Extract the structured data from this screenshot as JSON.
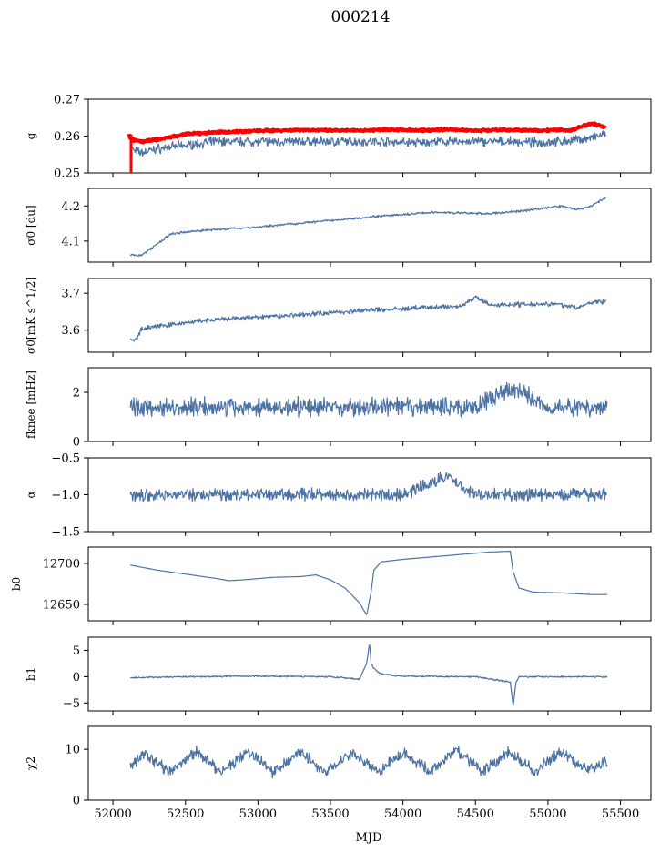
{
  "figure": {
    "title": "000214",
    "xlabel": "MJD"
  },
  "chart_data": [
    {
      "type": "line",
      "ylabel": "g",
      "x_range": [
        52120,
        55410
      ],
      "ylim": [
        0.25,
        0.27
      ],
      "yticks": [
        0.25,
        0.26,
        0.27
      ],
      "yticklabels": [
        "0.25",
        "0.26",
        "0.27"
      ],
      "series": [
        {
          "color": "#4C72A4",
          "x": [
            52120,
            52150,
            52200,
            52300,
            52500,
            52700,
            52900,
            53100,
            53300,
            53500,
            53700,
            53900,
            54100,
            54300,
            54500,
            54700,
            54900,
            55100,
            55300,
            55400
          ],
          "y": [
            0.2568,
            0.256,
            0.2555,
            0.2565,
            0.2575,
            0.2585,
            0.2585,
            0.2585,
            0.2585,
            0.2585,
            0.2585,
            0.2585,
            0.2582,
            0.2585,
            0.2585,
            0.2585,
            0.2582,
            0.2585,
            0.2595,
            0.2605
          ]
        },
        {
          "color": "#FF0000",
          "x": [
            52110,
            52120,
            52150,
            52200,
            52300,
            52500,
            52700,
            52900,
            53100,
            53300,
            53500,
            53700,
            53900,
            54100,
            54300,
            54500,
            54700,
            54900,
            55100,
            55150,
            55300,
            55400
          ],
          "y": [
            0.2605,
            0.2595,
            0.2588,
            0.2585,
            0.259,
            0.2605,
            0.261,
            0.2613,
            0.2615,
            0.2617,
            0.2615,
            0.2615,
            0.2618,
            0.2615,
            0.2618,
            0.2615,
            0.2617,
            0.2615,
            0.2617,
            0.2615,
            0.2635,
            0.2622
          ]
        }
      ]
    },
    {
      "type": "line",
      "ylabel": "σ0 [du]",
      "x_range": [
        52120,
        55410
      ],
      "ylim": [
        4.04,
        4.25
      ],
      "yticks": [
        4.1,
        4.2
      ],
      "yticklabels": [
        "4.1",
        "4.2"
      ],
      "series": [
        {
          "color": "#4C72A4",
          "x": [
            52120,
            52200,
            52300,
            52400,
            52600,
            52800,
            53000,
            53200,
            53400,
            53600,
            53800,
            54000,
            54200,
            54400,
            54600,
            54800,
            55000,
            55100,
            55200,
            55300,
            55400
          ],
          "y": [
            4.06,
            4.06,
            4.09,
            4.12,
            4.13,
            4.135,
            4.14,
            4.148,
            4.155,
            4.162,
            4.17,
            4.175,
            4.182,
            4.18,
            4.178,
            4.185,
            4.195,
            4.2,
            4.19,
            4.2,
            4.225
          ]
        }
      ]
    },
    {
      "type": "line",
      "ylabel": "σ0[mK s^1/2]",
      "x_range": [
        52120,
        55410
      ],
      "ylim": [
        3.54,
        3.74
      ],
      "yticks": [
        3.6,
        3.7
      ],
      "yticklabels": [
        "3.6",
        "3.7"
      ],
      "series": [
        {
          "color": "#4C72A4",
          "x": [
            52120,
            52150,
            52200,
            52400,
            52600,
            52800,
            53000,
            53200,
            53400,
            53600,
            53800,
            54000,
            54200,
            54400,
            54500,
            54600,
            54800,
            55000,
            55100,
            55200,
            55300,
            55400
          ],
          "y": [
            3.575,
            3.57,
            3.605,
            3.615,
            3.625,
            3.63,
            3.635,
            3.64,
            3.645,
            3.65,
            3.655,
            3.658,
            3.662,
            3.665,
            3.69,
            3.668,
            3.67,
            3.672,
            3.668,
            3.66,
            3.675,
            3.678
          ]
        }
      ]
    },
    {
      "type": "line",
      "ylabel": "fknee [mHz]",
      "x_range": [
        52120,
        55410
      ],
      "ylim": [
        0,
        3
      ],
      "yticks": [
        0,
        2
      ],
      "yticklabels": [
        "0",
        "2"
      ],
      "series": [
        {
          "color": "#4C72A4",
          "x": [
            52120,
            52500,
            53000,
            53500,
            54000,
            54500,
            54760,
            55000,
            55410
          ],
          "y": [
            1.4,
            1.4,
            1.4,
            1.4,
            1.4,
            1.4,
            2.2,
            1.4,
            1.4
          ]
        }
      ]
    },
    {
      "type": "line",
      "ylabel": "α",
      "x_range": [
        52120,
        55410
      ],
      "ylim": [
        -1.5,
        -0.5
      ],
      "yticks": [
        -1.5,
        -1.0,
        -0.5
      ],
      "yticklabels": [
        "−1.5",
        "−1.0",
        "−0.5"
      ],
      "series": [
        {
          "color": "#4C72A4",
          "x": [
            52120,
            52500,
            53000,
            53500,
            54000,
            54300,
            54500,
            55000,
            55410
          ],
          "y": [
            -1.0,
            -1.0,
            -1.0,
            -1.0,
            -1.0,
            -0.75,
            -1.0,
            -1.0,
            -1.0
          ]
        }
      ]
    },
    {
      "type": "line",
      "ylabel": "b0",
      "x_range": [
        52120,
        55410
      ],
      "ylim": [
        12630,
        12720
      ],
      "yticks": [
        12650,
        12700
      ],
      "yticklabels": [
        "12650",
        "12700"
      ],
      "series": [
        {
          "color": "#4C72A4",
          "x": [
            52120,
            52300,
            52500,
            52700,
            52800,
            52900,
            53100,
            53300,
            53400,
            53500,
            53600,
            53700,
            53750,
            53780,
            53800,
            53850,
            54000,
            54200,
            54400,
            54600,
            54740,
            54760,
            54800,
            54900,
            55100,
            55300,
            55410
          ],
          "y": [
            12698,
            12692,
            12687,
            12682,
            12679,
            12680,
            12683,
            12684,
            12686,
            12680,
            12670,
            12652,
            12637,
            12665,
            12692,
            12702,
            12705,
            12708,
            12711,
            12714,
            12715,
            12690,
            12670,
            12665,
            12664,
            12662,
            12662
          ]
        }
      ]
    },
    {
      "type": "line",
      "ylabel": "b1",
      "x_range": [
        52120,
        55410
      ],
      "ylim": [
        -6.5,
        7.5
      ],
      "yticks": [
        -5,
        0,
        5
      ],
      "yticklabels": [
        "−5",
        "0",
        "5"
      ],
      "series": [
        {
          "color": "#4C72A4",
          "x": [
            52120,
            52500,
            53000,
            53500,
            53700,
            53750,
            53770,
            53780,
            53800,
            53850,
            54000,
            54500,
            54740,
            54760,
            54780,
            54800,
            55000,
            55410
          ],
          "y": [
            -0.2,
            0.0,
            0.1,
            0.0,
            -0.5,
            2.5,
            6.5,
            2.5,
            1.5,
            0.5,
            0.1,
            0.0,
            -1.0,
            -5.5,
            -1.0,
            0.0,
            0.0,
            0.0
          ]
        }
      ]
    },
    {
      "type": "line",
      "ylabel": "χ2",
      "x_range": [
        52120,
        55410
      ],
      "ylim": [
        0,
        14.5
      ],
      "yticks": [
        0,
        10
      ],
      "yticklabels": [
        "0",
        "10"
      ],
      "xticks": [
        52000,
        52500,
        53000,
        53500,
        54000,
        54500,
        55000,
        55500
      ],
      "xticklabels": [
        "52000",
        "52500",
        "53000",
        "53500",
        "54000",
        "54500",
        "55000",
        "55500"
      ],
      "series": [
        {
          "color": "#4C72A4",
          "x": [
            52120,
            52210,
            52390,
            52570,
            52750,
            52930,
            53110,
            53290,
            53470,
            53650,
            53830,
            54010,
            54190,
            54370,
            54550,
            54730,
            54910,
            55090,
            55270,
            55410
          ],
          "y": [
            6.5,
            9.0,
            5.5,
            9.5,
            5.5,
            9.5,
            5.5,
            9.5,
            5.5,
            9.5,
            5.5,
            9.5,
            5.5,
            10.0,
            5.5,
            9.5,
            5.5,
            9.5,
            6.0,
            7.5
          ]
        }
      ]
    }
  ]
}
